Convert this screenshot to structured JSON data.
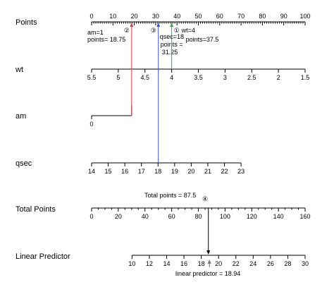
{
  "chart_data": {
    "type": "nomogram",
    "rows": [
      {
        "name": "Points",
        "major_ticks": [
          0,
          10,
          20,
          30,
          40,
          50,
          60,
          70,
          80,
          90,
          100
        ],
        "tick_labels": [
          "0",
          "10",
          "20",
          "30",
          "40",
          "50",
          "60",
          "70",
          "80",
          "90",
          "100"
        ],
        "minor_step": 1
      },
      {
        "name": "wt",
        "major_ticks": [
          5.5,
          5,
          4.5,
          4,
          3.5,
          3,
          2.5,
          2,
          1.5
        ],
        "tick_labels": [
          "5.5",
          "5",
          "4.5",
          "4",
          "3.5",
          "3",
          "2.5",
          "2",
          "1.5"
        ],
        "points_range": [
          0,
          100
        ]
      },
      {
        "name": "am",
        "levels": [
          "0",
          "1"
        ],
        "level_points": [
          0,
          18.75
        ]
      },
      {
        "name": "qsec",
        "major_ticks": [
          14,
          15,
          16,
          17,
          18,
          19,
          20,
          21,
          22,
          23
        ],
        "tick_labels": [
          "14",
          "15",
          "16",
          "17",
          "18",
          "19",
          "20",
          "21",
          "22",
          "23"
        ],
        "points_range": [
          0,
          70
        ]
      },
      {
        "name": "Total Points",
        "major_ticks": [
          0,
          20,
          40,
          60,
          80,
          100,
          120,
          140,
          160
        ],
        "tick_labels": [
          "0",
          "20",
          "40",
          "60",
          "80",
          "100",
          "120",
          "140",
          "160"
        ],
        "minor_step": 5
      },
      {
        "name": "Linear Predictor",
        "major_ticks": [
          10,
          12,
          14,
          16,
          18,
          20,
          22,
          24,
          26,
          28,
          30
        ],
        "tick_labels": [
          "10",
          "12",
          "14",
          "16",
          "18",
          "20",
          "22",
          "24",
          "26",
          "28",
          "30"
        ],
        "total_points_range": [
          30.3,
          160
        ]
      }
    ],
    "annotations": [
      {
        "marker": "②",
        "lines": [
          "am=1",
          "points= 18.75"
        ],
        "points": 18.75,
        "color": "#e8394a"
      },
      {
        "marker": "③",
        "lines": [
          "qsec=18",
          "points =",
          "31.25"
        ],
        "points": 31.25,
        "color": "#3d55c8"
      },
      {
        "marker": "①",
        "lines": [
          "wt=4",
          "points=37.5"
        ],
        "points": 37.5,
        "color": "#3aa84a"
      },
      {
        "marker": "④",
        "lines": [
          "Total points = 87.5"
        ],
        "total_points": 87.5,
        "color": "#000000"
      },
      {
        "lines": [
          "linear predictor = 18.94"
        ],
        "linear_predictor": 18.94,
        "color": "#000000"
      }
    ]
  }
}
